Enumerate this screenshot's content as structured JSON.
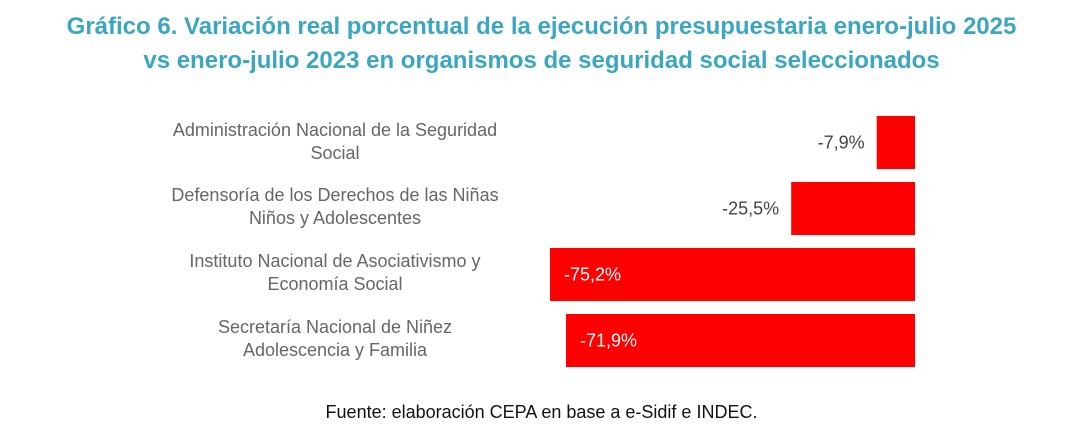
{
  "title_lines": [
    "Gráfico 6. Variación real porcentual de la ejecución presupuestaria enero-julio 2025",
    "vs enero-julio 2023 en organismos de seguridad social seleccionados"
  ],
  "source": "Fuente: elaboración CEPA en base a e-Sidif e INDEC.",
  "chart_data": {
    "type": "bar",
    "orientation": "horizontal",
    "title": "Gráfico 6. Variación real porcentual de la ejecución presupuestaria enero-julio 2025 vs enero-julio 2023 en organismos de seguridad social seleccionados",
    "categories": [
      [
        "Administración Nacional de la Seguridad",
        "Social"
      ],
      [
        "Defensoría de los Derechos de las Niñas",
        "Niños y Adolescentes"
      ],
      [
        "Instituto Nacional de Asociativismo y",
        "Economía Social"
      ],
      [
        "Secretaría Nacional de Niñez",
        "Adolescencia y Familia"
      ]
    ],
    "values": [
      -7.9,
      -25.5,
      -75.2,
      -71.9
    ],
    "value_labels": [
      "-7,9%",
      "-25,5%",
      "-75,2%",
      "-71,9%"
    ],
    "unit": "%",
    "xlim": [
      -75.2,
      0
    ],
    "bar_color": "#ff0000",
    "grid": false,
    "legend": "none"
  }
}
